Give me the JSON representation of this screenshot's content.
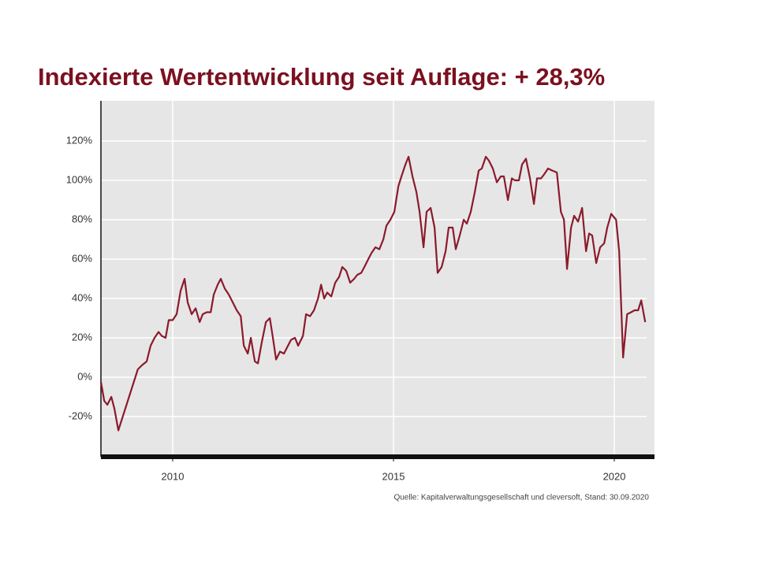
{
  "chart_data": {
    "type": "line",
    "title": "Indexierte Wertentwicklung seit Auflage: + 28,3%",
    "source": "Quelle: Kapitalverwaltungsgesellschaft und cleversoft, Stand: 30.09.2020",
    "color": "#8b1a2b",
    "grid": true,
    "x": [
      2008.375,
      2008.45,
      2008.52,
      2008.61,
      2008.68,
      2008.77,
      2009.21,
      2009.3,
      2009.41,
      2009.5,
      2009.59,
      2009.68,
      2009.75,
      2009.84,
      2009.91,
      2010,
      2010.09,
      2010.18,
      2010.27,
      2010.34,
      2010.43,
      2010.52,
      2010.61,
      2010.68,
      2010.77,
      2010.86,
      2010.93,
      2011.02,
      2011.09,
      2011.18,
      2011.27,
      2011.36,
      2011.45,
      2011.54,
      2011.61,
      2011.7,
      2011.77,
      2011.86,
      2011.93,
      2012.02,
      2012.11,
      2012.2,
      2012.27,
      2012.34,
      2012.43,
      2012.52,
      2012.61,
      2012.68,
      2012.77,
      2012.84,
      2012.95,
      2013.02,
      2013.11,
      2013.2,
      2013.29,
      2013.36,
      2013.43,
      2013.5,
      2013.59,
      2013.68,
      2013.77,
      2013.84,
      2013.93,
      2014.02,
      2014.11,
      2014.18,
      2014.27,
      2014.34,
      2014.43,
      2014.5,
      2014.59,
      2014.68,
      2014.77,
      2014.84,
      2014.93,
      2015.02,
      2015.11,
      2015.18,
      2015.27,
      2015.34,
      2015.43,
      2015.52,
      2015.59,
      2015.68,
      2015.75,
      2015.84,
      2015.93,
      2016,
      2016.09,
      2016.18,
      2016.25,
      2016.34,
      2016.41,
      2016.5,
      2016.59,
      2016.66,
      2016.75,
      2016.84,
      2016.93,
      2017,
      2017.09,
      2017.16,
      2017.25,
      2017.34,
      2017.43,
      2017.5,
      2017.59,
      2017.68,
      2017.75,
      2017.84,
      2017.91,
      2018,
      2018.09,
      2018.18,
      2018.25,
      2018.34,
      2018.41,
      2018.5,
      2018.59,
      2018.7,
      2018.79,
      2018.86,
      2018.93,
      2019.02,
      2019.09,
      2019.18,
      2019.27,
      2019.36,
      2019.43,
      2019.5,
      2019.59,
      2019.68,
      2019.77,
      2019.84,
      2019.93,
      2020.04,
      2020.11,
      2020.2,
      2020.29,
      2020.38,
      2020.46,
      2020.54,
      2020.61,
      2020.7
    ],
    "values": [
      -2.4,
      -12,
      -14,
      -10,
      -16,
      -27,
      4,
      6,
      8,
      16,
      20,
      23,
      21,
      20,
      29,
      29,
      32,
      44,
      50,
      38,
      32,
      35,
      28,
      32,
      33,
      33,
      42,
      47,
      50,
      45,
      42,
      38,
      34,
      31,
      16,
      12,
      20,
      8,
      7,
      18,
      28,
      30,
      20,
      9,
      13,
      12,
      16,
      19,
      20,
      16,
      21,
      32,
      31,
      34,
      40,
      47,
      40,
      43,
      41,
      48,
      51,
      56,
      54,
      48,
      50,
      52,
      53,
      56,
      60,
      63,
      66,
      65,
      70,
      77,
      80,
      84,
      97,
      102,
      108,
      112,
      102,
      94,
      84,
      66,
      84,
      86,
      76,
      53,
      56,
      64,
      76,
      76,
      65,
      72,
      80,
      78,
      84,
      94,
      105,
      106,
      112,
      110,
      106,
      99,
      102,
      102,
      90,
      101,
      100,
      100,
      108,
      111,
      101,
      88,
      101,
      101,
      103,
      106,
      105,
      104,
      84,
      80,
      55,
      76,
      82,
      79,
      86,
      64,
      73,
      72,
      58,
      66,
      68,
      76,
      83,
      80,
      64,
      10,
      32,
      33,
      34,
      34,
      39,
      28
    ],
    "xlim": [
      2008.375,
      2020.91
    ],
    "xticks": [
      2010,
      2015,
      2020
    ],
    "ylim": [
      -40.4,
      140.4
    ],
    "yticks": [
      {
        "value": -20,
        "label": "-20%"
      },
      {
        "value": 0,
        "label": "0%"
      },
      {
        "value": 20,
        "label": "20%"
      },
      {
        "value": 40,
        "label": "40%"
      },
      {
        "value": 60,
        "label": "60%"
      },
      {
        "value": 80,
        "label": "80%"
      },
      {
        "value": 100,
        "label": "100%"
      },
      {
        "value": 120,
        "label": "120%"
      }
    ]
  }
}
